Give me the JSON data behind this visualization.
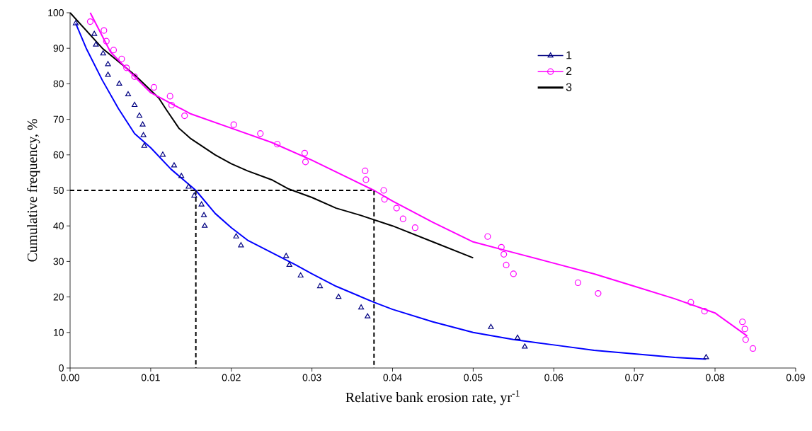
{
  "chart_data": {
    "type": "scatter",
    "xlabel": "Relative bank erosion rate, yr$^{-1}$",
    "ylabel": "Cumulative frequency, %",
    "xlim": [
      0,
      0.09
    ],
    "ylim": [
      0,
      100
    ],
    "xticks": [
      {
        "value": 0,
        "label": "0.00"
      },
      {
        "value": 0.01,
        "label": "0.01"
      },
      {
        "value": 0.02,
        "label": "0.02"
      },
      {
        "value": 0.03,
        "label": "0.03"
      },
      {
        "value": 0.04,
        "label": "0.04"
      },
      {
        "value": 0.05,
        "label": "0.05"
      },
      {
        "value": 0.06,
        "label": "0.06"
      },
      {
        "value": 0.07,
        "label": "0.07"
      },
      {
        "value": 0.08,
        "label": "0.08"
      },
      {
        "value": 0.09,
        "label": "0.09"
      }
    ],
    "yticks": [
      0,
      10,
      20,
      30,
      40,
      50,
      60,
      70,
      80,
      90,
      100
    ],
    "grid": false,
    "legend": "top right",
    "series": [
      {
        "name": "1",
        "marker": "triangle",
        "color": "#000080",
        "x": [
          0.0007,
          0.003,
          0.0032,
          0.0041,
          0.0047,
          0.0047,
          0.0061,
          0.0072,
          0.008,
          0.0086,
          0.009,
          0.0091,
          0.0092,
          0.0115,
          0.0129,
          0.0138,
          0.0147,
          0.0154,
          0.0163,
          0.0166,
          0.0167,
          0.0206,
          0.0212,
          0.0268,
          0.0272,
          0.0286,
          0.031,
          0.0333,
          0.0361,
          0.0369,
          0.0522,
          0.0555,
          0.0564,
          0.0789
        ],
        "values": [
          97,
          94,
          91,
          88.5,
          85.5,
          82.5,
          80,
          77,
          74,
          71,
          68.5,
          65.5,
          62.5,
          60,
          57,
          54,
          51,
          48.5,
          46,
          43,
          40,
          37,
          34.5,
          31.5,
          29,
          26,
          23,
          20,
          17,
          14.5,
          11.5,
          8.5,
          6,
          3
        ]
      },
      {
        "name": "2",
        "marker": "circle",
        "color": "#ff00ff",
        "x": [
          0.0025,
          0.0042,
          0.0045,
          0.0054,
          0.0064,
          0.007,
          0.008,
          0.0104,
          0.0124,
          0.0126,
          0.0142,
          0.0203,
          0.0236,
          0.0257,
          0.0291,
          0.0292,
          0.0366,
          0.0367,
          0.0389,
          0.039,
          0.0405,
          0.0413,
          0.0428,
          0.0518,
          0.0535,
          0.0538,
          0.0541,
          0.055,
          0.063,
          0.0655,
          0.077,
          0.0787,
          0.0834,
          0.0837,
          0.0838,
          0.0847
        ],
        "values": [
          97.5,
          95,
          92,
          89.5,
          87,
          84.5,
          82,
          79,
          76.5,
          74,
          71,
          68.5,
          66,
          63,
          60.5,
          58,
          55.5,
          53,
          50,
          47.5,
          45,
          42,
          39.5,
          37,
          34,
          32,
          29,
          26.5,
          24,
          21,
          18.5,
          16,
          13,
          11,
          8,
          5.5
        ]
      },
      {
        "name": "3",
        "type": "line",
        "marker": "none",
        "color": "#000000",
        "x": [
          0,
          0.004,
          0.008,
          0.011,
          0.012,
          0.0135,
          0.015,
          0.018,
          0.02,
          0.022,
          0.025,
          0.027,
          0.03,
          0.033,
          0.036,
          0.04,
          0.045,
          0.05
        ],
        "values": [
          100,
          90,
          82.5,
          76,
          72.5,
          67.5,
          64.5,
          60,
          57.5,
          55.5,
          53,
          50.5,
          48,
          45,
          43,
          40,
          35.5,
          31
        ]
      },
      {
        "type": "line",
        "marker": "none",
        "color": "#0000ff",
        "x": [
          0.0007,
          0.002,
          0.004,
          0.006,
          0.008,
          0.01,
          0.0125,
          0.0156,
          0.018,
          0.02,
          0.022,
          0.025,
          0.028,
          0.03,
          0.033,
          0.0377,
          0.04,
          0.045,
          0.05,
          0.055,
          0.06,
          0.065,
          0.07,
          0.075,
          0.0789
        ],
        "values": [
          97,
          90,
          81,
          73,
          66,
          62,
          56,
          50,
          43.5,
          39.5,
          36,
          32.5,
          29,
          26.5,
          23,
          18.5,
          16.5,
          13,
          10,
          8,
          6.5,
          5,
          4,
          3,
          2.5
        ]
      },
      {
        "type": "line",
        "marker": "none",
        "color": "#ff00ff",
        "x": [
          0.0025,
          0.005,
          0.008,
          0.01,
          0.015,
          0.02,
          0.025,
          0.03,
          0.0377,
          0.04,
          0.045,
          0.05,
          0.055,
          0.06,
          0.065,
          0.07,
          0.075,
          0.08,
          0.084
        ],
        "values": [
          100,
          89,
          82,
          77.5,
          71.5,
          67.5,
          63.5,
          58.5,
          50,
          47,
          41,
          35.5,
          32.5,
          29.5,
          26.5,
          23,
          19.5,
          15.5,
          9
        ]
      },
      {
        "type": "line",
        "marker": "none",
        "line_style": "dashed",
        "color": "#000000",
        "x": [
          0,
          0.0377,
          0.0377
        ],
        "values": [
          50,
          50,
          0
        ]
      },
      {
        "type": "line",
        "marker": "none",
        "line_style": "dashed",
        "color": "#000000",
        "x": [
          0.0156,
          0.0156
        ],
        "values": [
          50,
          0
        ]
      }
    ]
  }
}
